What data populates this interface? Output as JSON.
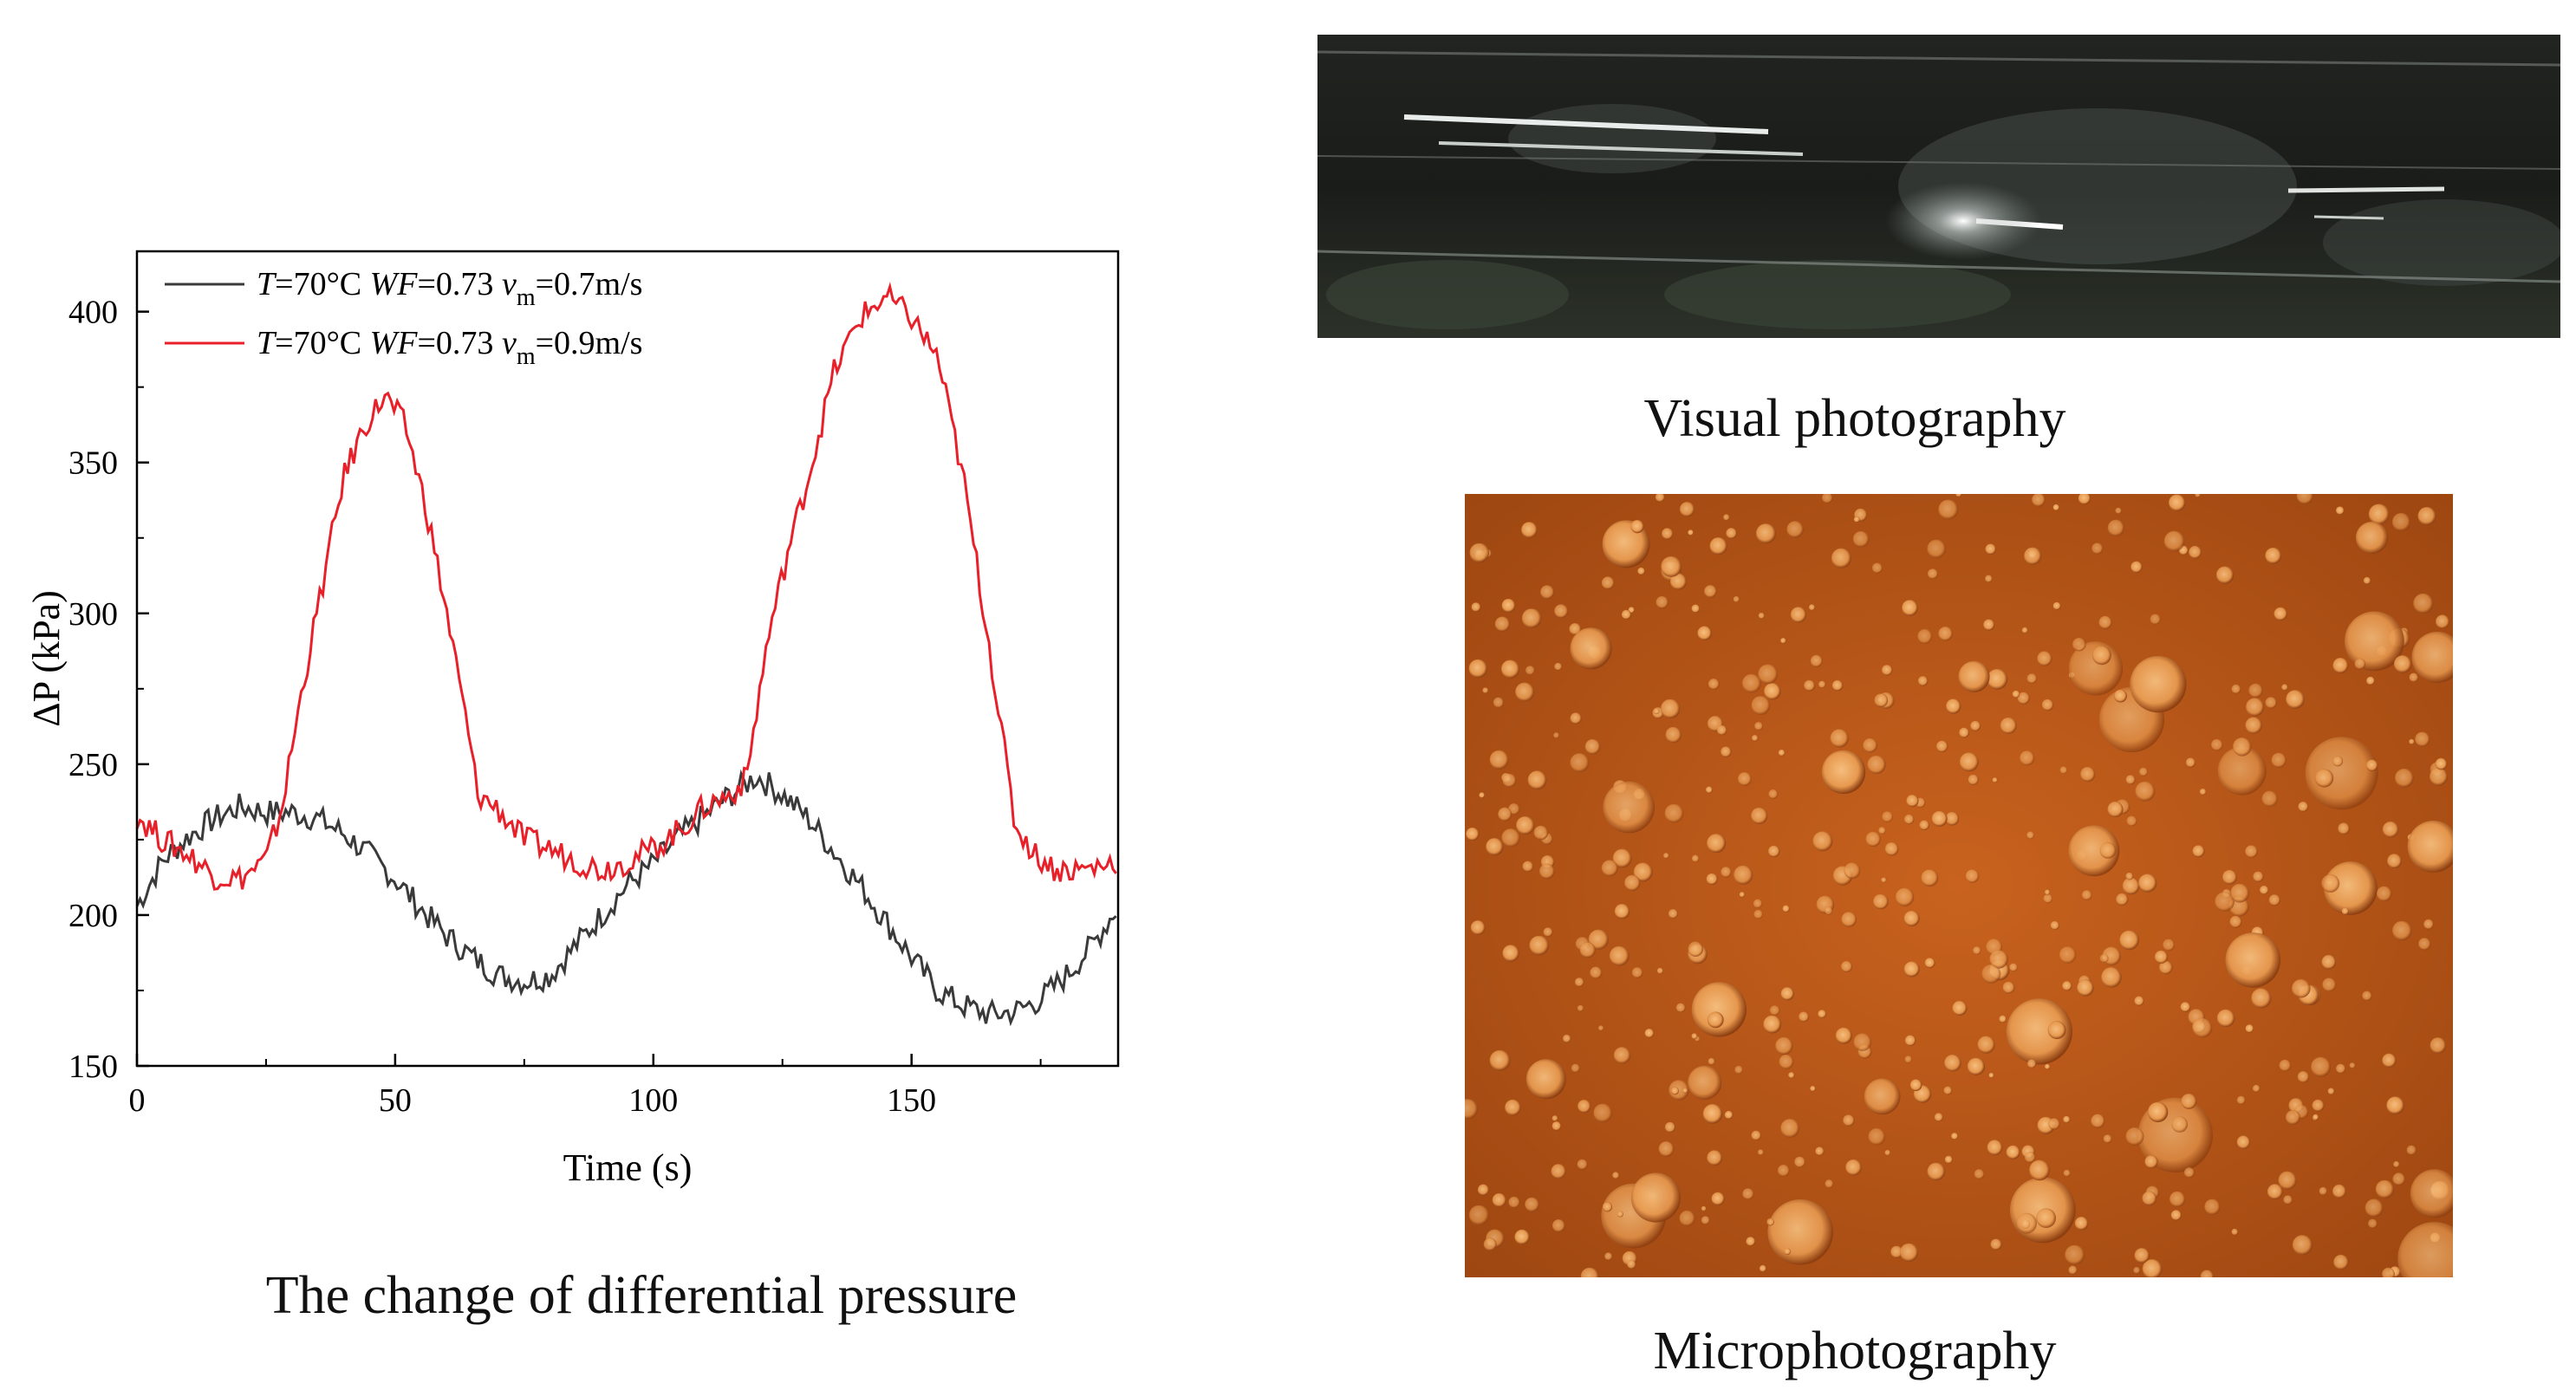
{
  "chart_data": {
    "type": "line",
    "title": "",
    "xlabel": "Time (s)",
    "ylabel": "ΔP (kPa)",
    "xlim": [
      0,
      190
    ],
    "ylim": [
      150,
      420
    ],
    "xticks": [
      0,
      50,
      100,
      150
    ],
    "yticks": [
      150,
      200,
      250,
      300,
      350,
      400
    ],
    "legend_position": "top-left",
    "grid": false,
    "series": [
      {
        "name": "T=70°C WF=0.73 vm=0.7m/s",
        "legend": {
          "T": "T",
          "eq1": "=70°C ",
          "WF": "WF",
          "eq2": "=0.73 ",
          "v": "v",
          "sub": "m",
          "eq3": "=0.7m/s"
        },
        "color": "#3a3a3a",
        "x": [
          0,
          5,
          10,
          15,
          20,
          25,
          30,
          35,
          40,
          45,
          50,
          55,
          60,
          65,
          70,
          75,
          80,
          85,
          90,
          95,
          100,
          105,
          110,
          115,
          120,
          125,
          130,
          135,
          140,
          145,
          150,
          155,
          160,
          165,
          170,
          175,
          180,
          185,
          190
        ],
        "values": [
          203,
          218,
          226,
          232,
          236,
          234,
          234,
          232,
          227,
          220,
          212,
          202,
          193,
          186,
          180,
          178,
          180,
          190,
          200,
          210,
          217,
          226,
          233,
          240,
          246,
          240,
          232,
          221,
          210,
          198,
          186,
          175,
          170,
          167,
          168,
          172,
          180,
          190,
          203
        ]
      },
      {
        "name": "T=70°C WF=0.73 vm=0.9m/s",
        "legend": {
          "T": "T",
          "eq1": "=70°C ",
          "WF": "WF",
          "eq2": "=0.73 ",
          "v": "v",
          "sub": "m",
          "eq3": "=0.9m/s"
        },
        "color": "#e8202a",
        "x": [
          0,
          5,
          10,
          15,
          20,
          25,
          28,
          32,
          36,
          40,
          44,
          48,
          52,
          56,
          60,
          64,
          66,
          70,
          75,
          80,
          85,
          90,
          95,
          100,
          105,
          110,
          115,
          118,
          122,
          126,
          130,
          135,
          140,
          145,
          150,
          155,
          160,
          165,
          170,
          174,
          178,
          182,
          186,
          190
        ],
        "values": [
          233,
          225,
          220,
          213,
          212,
          218,
          235,
          275,
          310,
          345,
          362,
          372,
          362,
          335,
          300,
          262,
          240,
          235,
          225,
          222,
          218,
          215,
          218,
          222,
          228,
          236,
          240,
          245,
          290,
          320,
          345,
          380,
          398,
          405,
          398,
          385,
          345,
          290,
          230,
          220,
          215,
          215,
          216,
          218
        ]
      }
    ]
  },
  "captions": {
    "chart": "The change of differential pressure",
    "visual": "Visual photography",
    "micro": "Microphotography"
  },
  "photos": {
    "visual_alt": "Visual photography of pipe flow",
    "micro_alt": "Microphotography of emulsion droplets"
  },
  "colors": {
    "axis": "#000000",
    "visual_bg": "#1c1f1b",
    "micro_bg": "#b8561a"
  }
}
